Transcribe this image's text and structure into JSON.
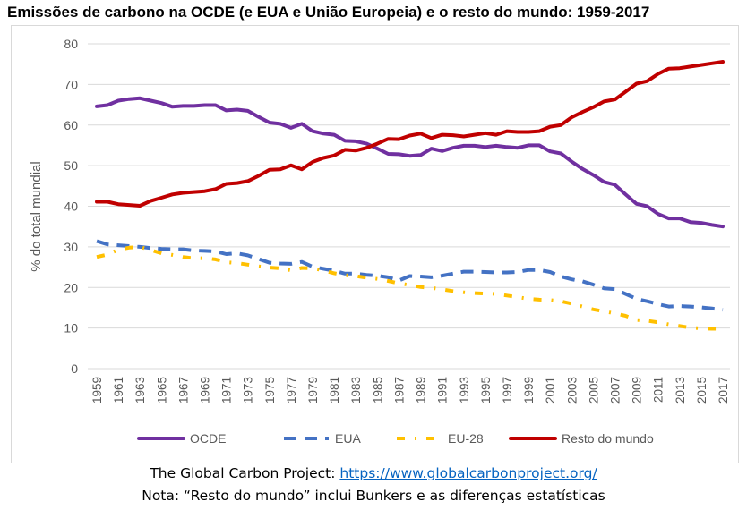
{
  "chart_data": {
    "type": "line",
    "title": "Emissões de carbono na OCDE (e EUA e União Europeia) e o resto do mundo: 1959-2017",
    "ylabel": "% do total mundial",
    "xlabel": "",
    "ylim": [
      0,
      80
    ],
    "yticks": [
      0,
      10,
      20,
      30,
      40,
      50,
      60,
      70,
      80
    ],
    "x": [
      1959,
      1960,
      1961,
      1962,
      1963,
      1964,
      1965,
      1966,
      1967,
      1968,
      1969,
      1970,
      1971,
      1972,
      1973,
      1974,
      1975,
      1976,
      1977,
      1978,
      1979,
      1980,
      1981,
      1982,
      1983,
      1984,
      1985,
      1986,
      1987,
      1988,
      1989,
      1990,
      1991,
      1992,
      1993,
      1994,
      1995,
      1996,
      1997,
      1998,
      1999,
      2000,
      2001,
      2002,
      2003,
      2004,
      2005,
      2006,
      2007,
      2008,
      2009,
      2010,
      2011,
      2012,
      2013,
      2014,
      2015,
      2016,
      2017
    ],
    "xtick_labels": [
      "1959",
      "1961",
      "1963",
      "1965",
      "1967",
      "1969",
      "1971",
      "1973",
      "1975",
      "1977",
      "1979",
      "1981",
      "1983",
      "1985",
      "1987",
      "1989",
      "1991",
      "1993",
      "1995",
      "1997",
      "1999",
      "2001",
      "2003",
      "2005",
      "2007",
      "2009",
      "2011",
      "2013",
      "2015",
      "2017"
    ],
    "grid": "horizontal",
    "legend": "bottom",
    "series": [
      {
        "name": "OCDE",
        "color": "#7030a0",
        "style": "solid",
        "values": [
          64.6,
          64.9,
          66.0,
          66.4,
          66.6,
          66.0,
          65.4,
          64.5,
          64.7,
          64.7,
          64.9,
          64.9,
          63.6,
          63.8,
          63.5,
          62.0,
          60.6,
          60.3,
          59.3,
          60.3,
          58.5,
          57.9,
          57.6,
          56.1,
          56.0,
          55.4,
          54.2,
          52.9,
          52.8,
          52.4,
          52.6,
          54.2,
          53.6,
          54.4,
          54.9,
          54.9,
          54.6,
          54.9,
          54.6,
          54.4,
          55.0,
          55.0,
          53.5,
          53.0,
          51.0,
          49.2,
          47.7,
          46.0,
          45.3,
          42.9,
          40.6,
          40.0,
          38.1,
          37.0,
          37.0,
          36.1,
          35.9,
          35.4,
          35.0
        ]
      },
      {
        "name": "EUA",
        "color": "#4472c4",
        "style": "dashed",
        "values": [
          31.4,
          30.6,
          30.4,
          30.2,
          30.0,
          29.7,
          29.5,
          29.4,
          29.4,
          29.1,
          29.0,
          28.9,
          28.2,
          28.4,
          27.9,
          27.0,
          26.1,
          25.9,
          25.8,
          26.3,
          25.1,
          24.6,
          24.1,
          23.4,
          23.4,
          23.1,
          22.9,
          22.5,
          21.7,
          22.8,
          22.7,
          22.5,
          22.9,
          23.4,
          23.9,
          23.9,
          23.8,
          23.7,
          23.7,
          23.8,
          24.3,
          24.3,
          23.8,
          22.7,
          22.0,
          21.5,
          20.7,
          19.8,
          19.6,
          18.4,
          17.2,
          16.6,
          15.9,
          15.3,
          15.4,
          15.3,
          15.1,
          14.8,
          14.5
        ]
      },
      {
        "name": "EU-28",
        "color": "#ffc000",
        "style": "dash-dot",
        "values": [
          27.5,
          28.1,
          29.3,
          29.8,
          30.0,
          29.2,
          28.4,
          28.0,
          27.5,
          27.2,
          27.2,
          26.9,
          26.2,
          26.0,
          25.6,
          25.2,
          24.9,
          24.7,
          24.2,
          24.8,
          24.7,
          24.2,
          23.5,
          23.0,
          22.8,
          22.4,
          22.1,
          21.6,
          21.0,
          20.6,
          20.1,
          19.9,
          19.5,
          19.1,
          18.8,
          18.6,
          18.5,
          18.4,
          18.0,
          17.6,
          17.2,
          17.0,
          16.9,
          16.6,
          16.0,
          15.3,
          14.6,
          14.1,
          13.6,
          13.0,
          12.0,
          11.8,
          11.4,
          10.9,
          10.5,
          10.1,
          9.9,
          9.8,
          9.8
        ]
      },
      {
        "name": "Resto do mundo",
        "color": "#c00000",
        "style": "solid",
        "values": [
          41.1,
          41.1,
          40.5,
          40.3,
          40.1,
          41.3,
          42.1,
          42.9,
          43.3,
          43.5,
          43.7,
          44.2,
          45.5,
          45.7,
          46.2,
          47.5,
          49.0,
          49.1,
          50.1,
          49.1,
          50.9,
          51.9,
          52.5,
          53.9,
          53.7,
          54.4,
          55.4,
          56.6,
          56.5,
          57.4,
          57.9,
          56.8,
          57.6,
          57.5,
          57.2,
          57.6,
          58.0,
          57.6,
          58.5,
          58.3,
          58.3,
          58.5,
          59.6,
          60.0,
          61.9,
          63.2,
          64.4,
          65.8,
          66.3,
          68.2,
          70.2,
          70.8,
          72.6,
          73.9,
          74.0,
          74.4,
          74.8,
          75.2,
          75.6
        ]
      }
    ]
  },
  "footer": {
    "source_prefix": "The Global Carbon Project: ",
    "source_link": "https://www.globalcarbonproject.org/",
    "note": "Nota: “Resto do mundo” inclui Bunkers e as diferenças estatísticas"
  }
}
